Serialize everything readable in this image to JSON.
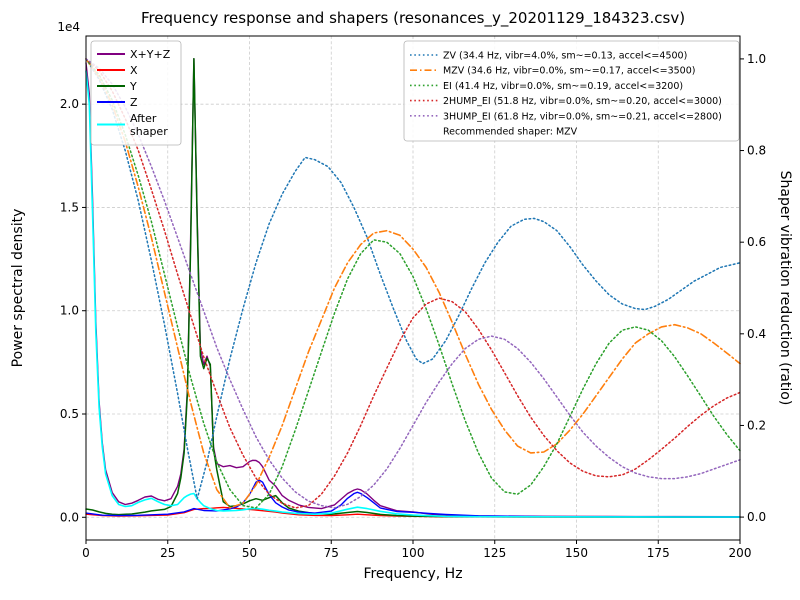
{
  "figure": {
    "title": "Frequency response and shapers (resonances_y_20201129_184323.csv)",
    "xlabel": "Frequency, Hz",
    "ylabel_left": "Power spectral density",
    "ylabel_right": "Shaper vibration reduction (ratio)",
    "offset_text": "1e4"
  },
  "chart_data": {
    "type": "line",
    "title": "Frequency response and shapers (resonances_y_20201129_184323.csv)",
    "xlabel": "Frequency, Hz",
    "ylabel": "Power spectral density",
    "y2label": "Shaper vibration reduction (ratio)",
    "xlim": [
      0,
      200
    ],
    "ylim": [
      -1100,
      23300
    ],
    "y2lim": [
      -0.05,
      1.05
    ],
    "xticks": [
      0,
      25,
      50,
      75,
      100,
      125,
      150,
      175,
      200
    ],
    "yticks": [
      0,
      5000,
      10000,
      15000,
      20000
    ],
    "ytick_labels": [
      "0.0",
      "0.5",
      "1.0",
      "1.5",
      "2.0"
    ],
    "y_offset": "1e4",
    "y2ticks": [
      0.0,
      0.2,
      0.4,
      0.6,
      0.8,
      1.0
    ],
    "grid": true,
    "grid_color": "#cccccc",
    "legend_left_position": "upper left",
    "legend_right_position": "upper right",
    "recommended_shaper": "MZV",
    "recommendation_label": "Recommended shaper: MZV",
    "psd_series": [
      {
        "name": "X+Y+Z",
        "label_lines": [
          "X+Y+Z"
        ],
        "color": "#800080",
        "width": 1.4,
        "x": [
          0,
          1,
          2,
          3,
          4,
          5,
          6,
          8,
          10,
          12,
          14,
          16,
          18,
          20,
          22,
          24,
          26,
          28,
          29,
          30,
          31,
          32,
          33,
          34,
          35,
          36,
          37,
          38,
          39,
          40,
          42,
          44,
          46,
          48,
          50,
          51,
          52,
          53,
          54,
          56,
          58,
          60,
          62,
          65,
          68,
          72,
          76,
          80,
          82,
          83,
          84,
          86,
          88,
          90,
          95,
          100,
          105,
          110,
          120,
          140,
          160,
          180,
          200
        ],
        "y": [
          22000,
          20500,
          15500,
          9500,
          5600,
          3600,
          2300,
          1200,
          750,
          620,
          680,
          820,
          980,
          1030,
          870,
          800,
          900,
          1500,
          2100,
          3300,
          6200,
          13500,
          22200,
          14500,
          8200,
          7400,
          7800,
          7300,
          3400,
          2600,
          2450,
          2500,
          2400,
          2450,
          2700,
          2760,
          2750,
          2650,
          2450,
          1800,
          1500,
          1050,
          820,
          600,
          480,
          420,
          600,
          1150,
          1320,
          1370,
          1330,
          1120,
          820,
          560,
          320,
          260,
          160,
          90,
          60,
          45,
          38,
          32,
          30
        ]
      },
      {
        "name": "X",
        "label_lines": [
          "X"
        ],
        "color": "#ff0000",
        "width": 1.4,
        "x": [
          0,
          5,
          10,
          15,
          20,
          25,
          30,
          33,
          36,
          38,
          40,
          42,
          44,
          46,
          48,
          50,
          52,
          55,
          58,
          60,
          65,
          70,
          75,
          80,
          83,
          86,
          90,
          95,
          100,
          110,
          120,
          140,
          160,
          180,
          200
        ],
        "y": [
          150,
          80,
          60,
          70,
          90,
          110,
          220,
          380,
          420,
          430,
          460,
          480,
          460,
          430,
          400,
          380,
          350,
          300,
          250,
          200,
          120,
          90,
          80,
          120,
          150,
          120,
          85,
          60,
          45,
          25,
          18,
          12,
          10,
          8,
          8
        ]
      },
      {
        "name": "Y",
        "label_lines": [
          "Y"
        ],
        "color": "#006400",
        "width": 1.5,
        "x": [
          0,
          2,
          4,
          6,
          8,
          10,
          14,
          18,
          20,
          24,
          26,
          28,
          29,
          30,
          31,
          32,
          33,
          34,
          35,
          36,
          37,
          38,
          39,
          40,
          41,
          42,
          44,
          46,
          48,
          50,
          52,
          54,
          56,
          58,
          60,
          62,
          65,
          70,
          75,
          80,
          83,
          86,
          90,
          95,
          100,
          110,
          120,
          140,
          160,
          180,
          200
        ],
        "y": [
          400,
          350,
          260,
          190,
          150,
          130,
          160,
          250,
          310,
          380,
          520,
          1150,
          1900,
          3100,
          6000,
          13000,
          22200,
          14200,
          7800,
          7200,
          7700,
          7400,
          3300,
          2300,
          1500,
          750,
          520,
          560,
          650,
          800,
          900,
          820,
          950,
          1050,
          700,
          450,
          300,
          180,
          150,
          230,
          280,
          230,
          140,
          85,
          55,
          32,
          22,
          18,
          14,
          11,
          10
        ]
      },
      {
        "name": "Z",
        "label_lines": [
          "Z"
        ],
        "color": "#0000ff",
        "width": 1.4,
        "x": [
          0,
          5,
          10,
          15,
          20,
          25,
          30,
          33,
          36,
          40,
          42,
          44,
          46,
          48,
          50,
          51,
          52,
          53,
          54,
          55,
          56,
          58,
          60,
          62,
          65,
          70,
          75,
          78,
          80,
          82,
          83,
          84,
          86,
          88,
          90,
          95,
          100,
          105,
          110,
          120,
          140,
          160,
          180,
          200
        ],
        "y": [
          200,
          100,
          80,
          90,
          120,
          150,
          260,
          420,
          330,
          310,
          350,
          410,
          500,
          700,
          1100,
          1400,
          1700,
          1800,
          1700,
          1400,
          1100,
          700,
          500,
          350,
          250,
          200,
          300,
          600,
          920,
          1150,
          1210,
          1150,
          950,
          700,
          450,
          280,
          240,
          190,
          140,
          70,
          35,
          22,
          16,
          13
        ]
      },
      {
        "name": "After shaper",
        "label_lines": [
          "After",
          "shaper"
        ],
        "color": "#00ffff",
        "width": 1.6,
        "x": [
          0,
          1,
          2,
          3,
          4,
          5,
          6,
          8,
          10,
          12,
          14,
          16,
          18,
          20,
          22,
          24,
          26,
          28,
          30,
          31,
          32,
          33,
          34,
          35,
          36,
          38,
          40,
          42,
          44,
          46,
          48,
          50,
          52,
          54,
          56,
          58,
          60,
          65,
          70,
          75,
          80,
          83,
          86,
          90,
          95,
          100,
          105,
          110,
          120,
          140,
          160,
          180,
          200
        ],
        "y": [
          21600,
          20000,
          14800,
          9000,
          5300,
          3400,
          2100,
          1050,
          620,
          520,
          560,
          720,
          840,
          920,
          760,
          620,
          560,
          620,
          950,
          1050,
          1120,
          1150,
          900,
          720,
          560,
          420,
          330,
          310,
          320,
          330,
          360,
          410,
          430,
          390,
          340,
          300,
          250,
          180,
          150,
          200,
          390,
          490,
          420,
          290,
          170,
          110,
          75,
          45,
          30,
          22,
          18,
          15,
          14
        ]
      }
    ],
    "shaper_series": [
      {
        "name": "ZV",
        "label": "ZV (34.4 Hz, vibr=4.0%, sm~=0.13, accel<=4500)",
        "color": "#1f77b4",
        "style": "dotted",
        "width": 1.5,
        "x": [
          0,
          4,
          8,
          12,
          16,
          20,
          24,
          28,
          31,
          34,
          37,
          40,
          44,
          48,
          52,
          56,
          60,
          64,
          67,
          70,
          74,
          78,
          82,
          86,
          90,
          94,
          98,
          101,
          103,
          106,
          110,
          114,
          118,
          122,
          126,
          130,
          134,
          137,
          140,
          144,
          148,
          152,
          156,
          160,
          164,
          168,
          171,
          174,
          178,
          182,
          186,
          190,
          194,
          200
        ],
        "y": [
          1.0,
          0.955,
          0.89,
          0.8,
          0.69,
          0.56,
          0.42,
          0.27,
          0.15,
          0.04,
          0.12,
          0.22,
          0.345,
          0.455,
          0.555,
          0.64,
          0.705,
          0.755,
          0.785,
          0.78,
          0.765,
          0.73,
          0.675,
          0.61,
          0.53,
          0.455,
          0.385,
          0.345,
          0.335,
          0.345,
          0.385,
          0.44,
          0.5,
          0.555,
          0.6,
          0.635,
          0.65,
          0.652,
          0.645,
          0.625,
          0.59,
          0.55,
          0.515,
          0.485,
          0.465,
          0.455,
          0.453,
          0.46,
          0.475,
          0.495,
          0.515,
          0.53,
          0.545,
          0.555
        ]
      },
      {
        "name": "MZV",
        "label": "MZV (34.6 Hz, vibr=0.0%, sm~=0.17, accel<=3500)",
        "color": "#ff7f0e",
        "style": "dashdot",
        "width": 1.6,
        "x": [
          0,
          4,
          8,
          12,
          16,
          20,
          24,
          28,
          32,
          36,
          40,
          44,
          48,
          52,
          56,
          60,
          64,
          68,
          72,
          76,
          80,
          84,
          88,
          92,
          96,
          100,
          104,
          108,
          112,
          116,
          120,
          124,
          128,
          132,
          136,
          140,
          144,
          148,
          152,
          156,
          160,
          164,
          168,
          172,
          176,
          180,
          184,
          188,
          192,
          196,
          200
        ],
        "y": [
          1.0,
          0.96,
          0.9,
          0.82,
          0.72,
          0.61,
          0.49,
          0.37,
          0.25,
          0.14,
          0.06,
          0.02,
          0.03,
          0.07,
          0.13,
          0.2,
          0.28,
          0.36,
          0.43,
          0.5,
          0.555,
          0.595,
          0.62,
          0.625,
          0.615,
          0.585,
          0.545,
          0.49,
          0.425,
          0.355,
          0.29,
          0.235,
          0.19,
          0.155,
          0.14,
          0.142,
          0.16,
          0.19,
          0.225,
          0.265,
          0.305,
          0.345,
          0.38,
          0.4,
          0.415,
          0.42,
          0.413,
          0.4,
          0.38,
          0.358,
          0.335
        ]
      },
      {
        "name": "EI",
        "label": "EI (41.4 Hz, vibr=0.0%, sm~=0.19, accel<=3200)",
        "color": "#2ca02c",
        "style": "dotted",
        "width": 1.5,
        "x": [
          0,
          4,
          8,
          12,
          16,
          20,
          24,
          28,
          32,
          36,
          40,
          44,
          48,
          52,
          56,
          60,
          64,
          68,
          72,
          76,
          80,
          84,
          88,
          92,
          96,
          100,
          104,
          108,
          112,
          116,
          120,
          124,
          128,
          132,
          136,
          140,
          144,
          148,
          152,
          156,
          160,
          164,
          168,
          172,
          176,
          180,
          184,
          188,
          192,
          196,
          200
        ],
        "y": [
          1.0,
          0.965,
          0.91,
          0.835,
          0.745,
          0.645,
          0.53,
          0.415,
          0.305,
          0.205,
          0.12,
          0.06,
          0.025,
          0.02,
          0.05,
          0.11,
          0.19,
          0.275,
          0.36,
          0.445,
          0.52,
          0.575,
          0.605,
          0.6,
          0.575,
          0.525,
          0.455,
          0.375,
          0.29,
          0.21,
          0.14,
          0.085,
          0.055,
          0.05,
          0.07,
          0.11,
          0.16,
          0.22,
          0.28,
          0.335,
          0.38,
          0.408,
          0.415,
          0.408,
          0.385,
          0.35,
          0.308,
          0.264,
          0.22,
          0.18,
          0.145
        ]
      },
      {
        "name": "2HUMP_EI",
        "label": "2HUMP_EI (51.8 Hz, vibr=0.0%, sm~=0.20, accel<=3000)",
        "color": "#d62728",
        "style": "dotted",
        "width": 1.5,
        "x": [
          0,
          4,
          8,
          12,
          16,
          20,
          24,
          28,
          32,
          36,
          40,
          44,
          48,
          52,
          56,
          60,
          64,
          68,
          72,
          76,
          80,
          84,
          88,
          92,
          96,
          100,
          104,
          108,
          112,
          116,
          120,
          124,
          128,
          132,
          136,
          140,
          144,
          148,
          152,
          156,
          160,
          164,
          168,
          172,
          176,
          180,
          184,
          188,
          192,
          196,
          200
        ],
        "y": [
          1.0,
          0.975,
          0.93,
          0.87,
          0.8,
          0.715,
          0.625,
          0.53,
          0.44,
          0.35,
          0.27,
          0.195,
          0.135,
          0.085,
          0.05,
          0.03,
          0.02,
          0.025,
          0.05,
          0.09,
          0.14,
          0.2,
          0.265,
          0.325,
          0.385,
          0.435,
          0.465,
          0.478,
          0.47,
          0.448,
          0.41,
          0.365,
          0.315,
          0.265,
          0.218,
          0.178,
          0.145,
          0.118,
          0.1,
          0.09,
          0.088,
          0.092,
          0.105,
          0.125,
          0.148,
          0.172,
          0.198,
          0.222,
          0.243,
          0.26,
          0.272
        ]
      },
      {
        "name": "3HUMP_EI",
        "label": "3HUMP_EI (61.8 Hz, vibr=0.0%, sm~=0.21, accel<=2800)",
        "color": "#9467bd",
        "style": "dotted",
        "width": 1.5,
        "x": [
          0,
          4,
          8,
          12,
          16,
          20,
          24,
          28,
          32,
          36,
          40,
          44,
          48,
          52,
          56,
          60,
          64,
          68,
          72,
          76,
          80,
          84,
          88,
          92,
          96,
          100,
          104,
          108,
          112,
          116,
          120,
          124,
          128,
          132,
          136,
          140,
          144,
          148,
          152,
          156,
          160,
          164,
          168,
          172,
          176,
          180,
          184,
          188,
          192,
          196,
          200
        ],
        "y": [
          1.0,
          0.98,
          0.945,
          0.895,
          0.835,
          0.765,
          0.69,
          0.61,
          0.53,
          0.45,
          0.37,
          0.3,
          0.235,
          0.175,
          0.125,
          0.085,
          0.055,
          0.035,
          0.025,
          0.02,
          0.028,
          0.045,
          0.07,
          0.105,
          0.15,
          0.2,
          0.25,
          0.295,
          0.335,
          0.368,
          0.388,
          0.395,
          0.388,
          0.368,
          0.338,
          0.302,
          0.262,
          0.222,
          0.185,
          0.155,
          0.13,
          0.11,
          0.096,
          0.088,
          0.084,
          0.084,
          0.088,
          0.095,
          0.105,
          0.115,
          0.125
        ]
      }
    ]
  }
}
